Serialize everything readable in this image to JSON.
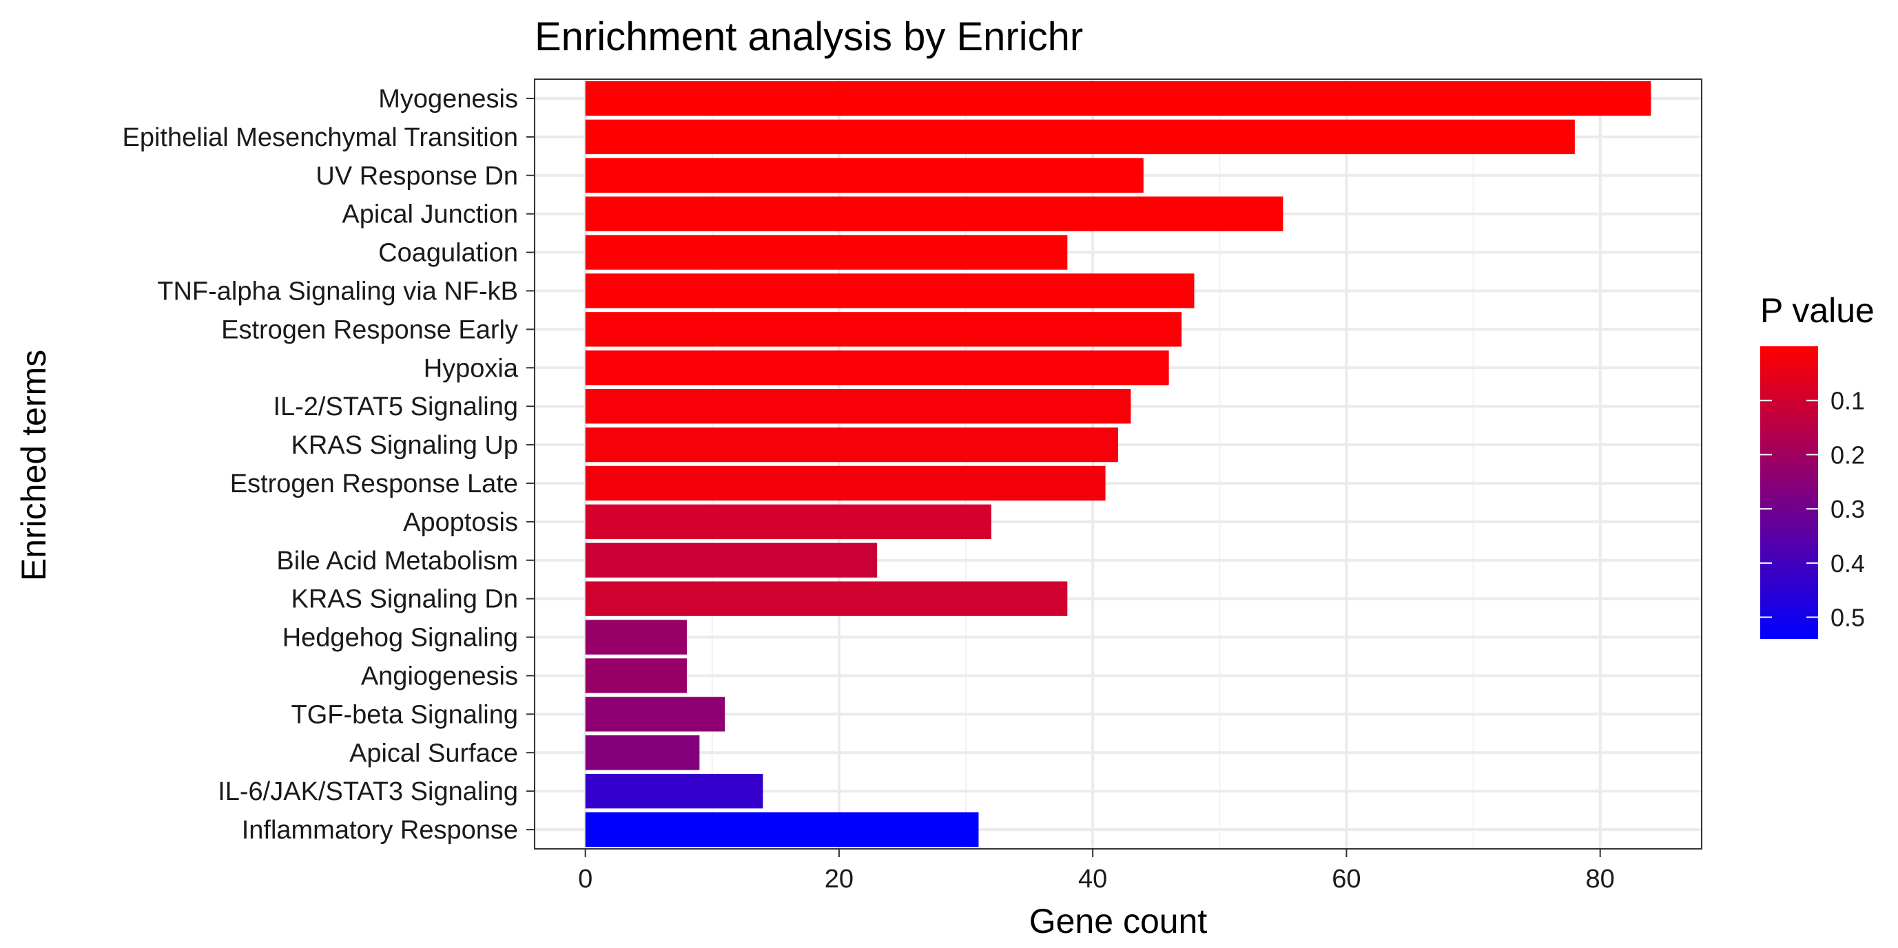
{
  "chart_data": {
    "type": "bar",
    "orientation": "horizontal",
    "title": "Enrichment analysis by Enrichr",
    "xlabel": "Gene count",
    "ylabel": "Enriched terms",
    "xlim": [
      -4,
      88
    ],
    "xticks": [
      0,
      20,
      40,
      60,
      80
    ],
    "grid": true,
    "legend_position": "right",
    "categories": [
      "Myogenesis",
      "Epithelial Mesenchymal Transition",
      "UV Response Dn",
      "Apical Junction",
      "Coagulation",
      "TNF-alpha Signaling via NF-kB",
      "Estrogen Response Early",
      "Hypoxia",
      "IL-2/STAT5 Signaling",
      "KRAS Signaling Up",
      "Estrogen Response Late",
      "Apoptosis",
      "Bile Acid Metabolism",
      "KRAS Signaling Dn",
      "Hedgehog Signaling",
      "Angiogenesis",
      "TGF-beta Signaling",
      "Apical Surface",
      "IL-6/JAK/STAT3 Signaling",
      "Inflammatory Response"
    ],
    "values": [
      84,
      78,
      44,
      55,
      38,
      48,
      47,
      46,
      43,
      42,
      41,
      32,
      23,
      38,
      8,
      8,
      11,
      9,
      14,
      31
    ],
    "p_values": [
      0.001,
      0.001,
      0.002,
      0.003,
      0.005,
      0.006,
      0.008,
      0.01,
      0.015,
      0.02,
      0.025,
      0.09,
      0.11,
      0.1,
      0.22,
      0.22,
      0.24,
      0.26,
      0.43,
      0.54
    ],
    "color_scale": {
      "title": "P value",
      "low_color": "#ff0000",
      "high_color": "#0000ff",
      "domain": [
        0,
        0.54
      ],
      "ticks": [
        0.1,
        0.2,
        0.3,
        0.4,
        0.5
      ],
      "tick_labels": [
        "0.1",
        "0.2",
        "0.3",
        "0.4",
        "0.5"
      ]
    }
  }
}
